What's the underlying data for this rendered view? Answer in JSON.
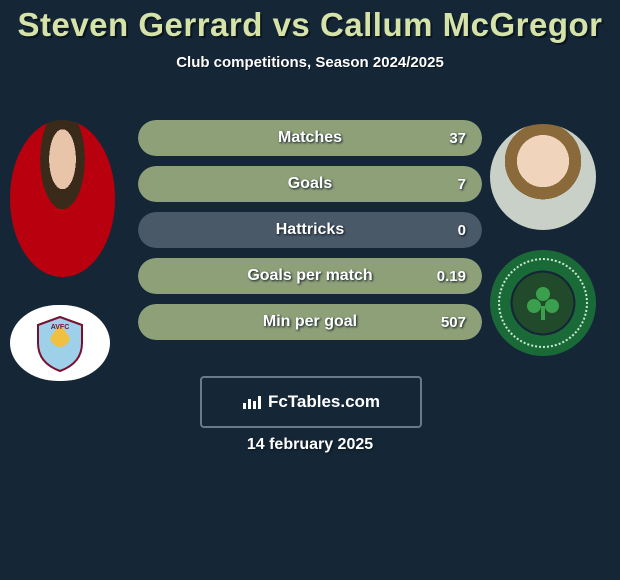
{
  "title": "Steven Gerrard vs Callum McGregor",
  "subtitle": "Club competitions, Season 2024/2025",
  "date": "14 february 2025",
  "brand": "FcTables.com",
  "colors": {
    "background": "#152736",
    "title": "#d6e3a8",
    "text": "#ffffff",
    "pill_track": "#495968",
    "pill_fill_right": "#8ea078"
  },
  "player_left": {
    "name": "Steven Gerrard",
    "club_badge": "AVFC"
  },
  "player_right": {
    "name": "Callum McGregor",
    "club_badge": "Celtic"
  },
  "stats": [
    {
      "label": "Matches",
      "left_value": "",
      "right_value": "37",
      "left_pct": 0,
      "right_pct": 100
    },
    {
      "label": "Goals",
      "left_value": "",
      "right_value": "7",
      "left_pct": 0,
      "right_pct": 100
    },
    {
      "label": "Hattricks",
      "left_value": "",
      "right_value": "0",
      "left_pct": 0,
      "right_pct": 0
    },
    {
      "label": "Goals per match",
      "left_value": "",
      "right_value": "0.19",
      "left_pct": 0,
      "right_pct": 100
    },
    {
      "label": "Min per goal",
      "left_value": "",
      "right_value": "507",
      "left_pct": 0,
      "right_pct": 100
    }
  ],
  "style": {
    "pill_height": 36,
    "pill_gap": 10,
    "pill_radius": 18,
    "title_fontsize": 33,
    "subtitle_fontsize": 15,
    "label_fontsize": 16,
    "value_fontsize": 15,
    "brand_fontsize": 17,
    "date_fontsize": 16
  }
}
